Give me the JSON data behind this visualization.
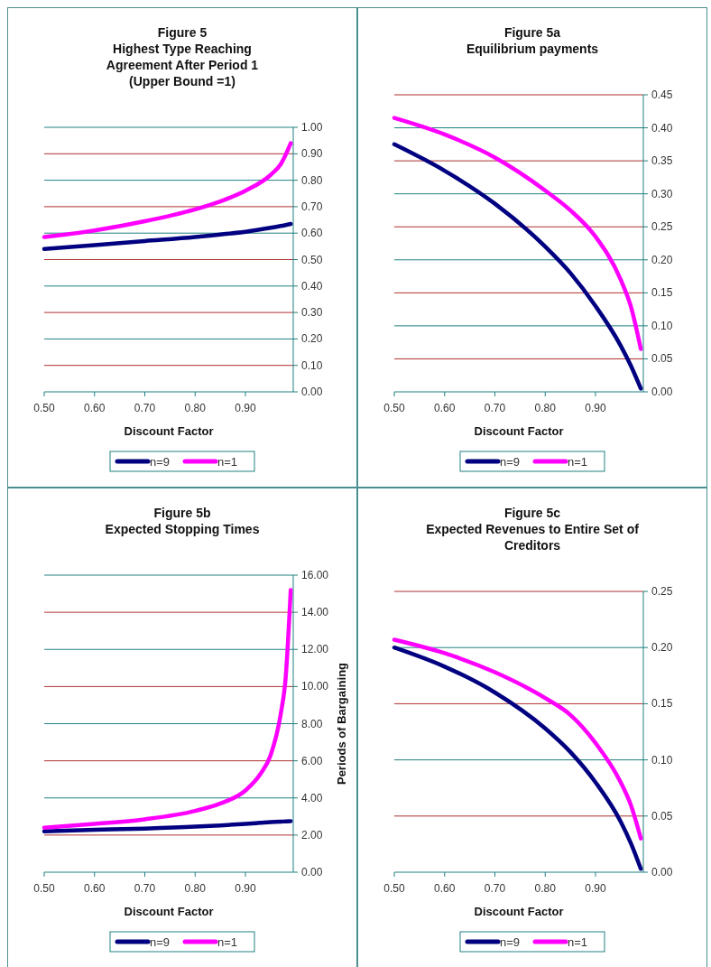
{
  "chart_data": [
    {
      "type": "line",
      "title": "Figure 5\nHighest Type Reaching\nAgreement After Period 1\n(Upper Bound =1)",
      "xlabel": "Discount Factor",
      "x": [
        0.5,
        0.6,
        0.7,
        0.8,
        0.85,
        0.9,
        0.95,
        0.97,
        0.99
      ],
      "xlim": [
        0.5,
        0.995
      ],
      "xticks": [
        {
          "value": 0.5,
          "label": "0.50"
        },
        {
          "value": 0.6,
          "label": "0.60"
        },
        {
          "value": 0.7,
          "label": "0.70"
        },
        {
          "value": 0.8,
          "label": "0.80"
        },
        {
          "value": 0.9,
          "label": "0.90"
        }
      ],
      "ylim": [
        0,
        1
      ],
      "yticks": [
        {
          "value": 0,
          "label": "0.00"
        },
        {
          "value": 0.1,
          "label": "0.10"
        },
        {
          "value": 0.2,
          "label": "0.20"
        },
        {
          "value": 0.3,
          "label": "0.30"
        },
        {
          "value": 0.4,
          "label": "0.40"
        },
        {
          "value": 0.5,
          "label": "0.50"
        },
        {
          "value": 0.6,
          "label": "0.60"
        },
        {
          "value": 0.7,
          "label": "0.70"
        },
        {
          "value": 0.8,
          "label": "0.80"
        },
        {
          "value": 0.9,
          "label": "0.90"
        },
        {
          "value": 1,
          "label": "1.00"
        }
      ],
      "grid": "y",
      "legend": "bottom",
      "series": [
        {
          "name": "n=9",
          "color": "#000080",
          "values": [
            0.54,
            0.555,
            0.57,
            0.585,
            0.595,
            0.605,
            0.62,
            0.627,
            0.635
          ]
        },
        {
          "name": "n=1",
          "color": "#ff00ff",
          "values": [
            0.585,
            0.61,
            0.645,
            0.69,
            0.72,
            0.76,
            0.82,
            0.86,
            0.94
          ]
        }
      ]
    },
    {
      "type": "line",
      "title": "Figure 5a\nEquilibrium payments",
      "xlabel": "Discount Factor",
      "x": [
        0.5,
        0.6,
        0.7,
        0.8,
        0.85,
        0.9,
        0.95,
        0.97,
        0.99
      ],
      "xlim": [
        0.5,
        0.995
      ],
      "xticks": [
        {
          "value": 0.5,
          "label": "0.50"
        },
        {
          "value": 0.6,
          "label": "0.60"
        },
        {
          "value": 0.7,
          "label": "0.70"
        },
        {
          "value": 0.8,
          "label": "0.80"
        },
        {
          "value": 0.9,
          "label": "0.90"
        }
      ],
      "ylim": [
        0,
        0.45
      ],
      "yticks": [
        {
          "value": 0,
          "label": "0.00"
        },
        0.05,
        {
          "value": 0.1,
          "label": "0.10"
        },
        0.15,
        {
          "value": 0.2,
          "label": "0.20"
        },
        0.25,
        {
          "value": 0.3,
          "label": "0.30"
        },
        0.35,
        {
          "value": 0.4,
          "label": "0.40"
        },
        0.45
      ],
      "grid": "y",
      "legend": "bottom",
      "series": [
        {
          "name": "n=9",
          "color": "#000080",
          "values": [
            0.375,
            0.335,
            0.285,
            0.22,
            0.18,
            0.13,
            0.07,
            0.04,
            0.005
          ]
        },
        {
          "name": "n=1",
          "color": "#ff00ff",
          "values": [
            0.415,
            0.39,
            0.355,
            0.305,
            0.275,
            0.235,
            0.17,
            0.13,
            0.065
          ]
        }
      ]
    },
    {
      "type": "line",
      "title": "Figure 5b\nExpected Stopping Times",
      "xlabel": "Discount Factor",
      "ylabel": "Periods of Bargaining",
      "x": [
        0.5,
        0.6,
        0.7,
        0.8,
        0.85,
        0.9,
        0.93,
        0.95,
        0.97,
        0.98,
        0.99
      ],
      "xlim": [
        0.5,
        0.995
      ],
      "xticks": [
        {
          "value": 0.5,
          "label": "0.50"
        },
        {
          "value": 0.6,
          "label": "0.60"
        },
        {
          "value": 0.7,
          "label": "0.70"
        },
        {
          "value": 0.8,
          "label": "0.80"
        },
        {
          "value": 0.9,
          "label": "0.90"
        }
      ],
      "ylim": [
        0,
        16
      ],
      "yticks": [
        {
          "value": 0,
          "label": "0.00"
        },
        {
          "value": 2,
          "label": "2.00"
        },
        {
          "value": 4,
          "label": "4.00"
        },
        {
          "value": 6,
          "label": "6.00"
        },
        {
          "value": 8,
          "label": "8.00"
        },
        {
          "value": 10,
          "label": "10.00"
        },
        {
          "value": 12,
          "label": "12.00"
        },
        {
          "value": 14,
          "label": "14.00"
        },
        {
          "value": 16,
          "label": "16.00"
        }
      ],
      "grid": "y",
      "legend": "bottom",
      "series": [
        {
          "name": "n=9",
          "color": "#000080",
          "values": [
            2.2,
            2.28,
            2.35,
            2.45,
            2.52,
            2.6,
            2.66,
            2.7,
            2.72,
            2.74,
            2.75
          ]
        },
        {
          "name": "n=1",
          "color": "#ff00ff",
          "values": [
            2.4,
            2.6,
            2.85,
            3.3,
            3.7,
            4.4,
            5.3,
            6.3,
            8.5,
            10.5,
            15.2
          ]
        }
      ]
    },
    {
      "type": "line",
      "title": "Figure 5c\nExpected Revenues to Entire Set of\nCreditors",
      "xlabel": "Discount Factor",
      "x": [
        0.5,
        0.6,
        0.7,
        0.8,
        0.85,
        0.9,
        0.95,
        0.97,
        0.99
      ],
      "xlim": [
        0.5,
        0.995
      ],
      "xticks": [
        {
          "value": 0.5,
          "label": "0.50"
        },
        {
          "value": 0.6,
          "label": "0.60"
        },
        {
          "value": 0.7,
          "label": "0.70"
        },
        {
          "value": 0.8,
          "label": "0.80"
        },
        {
          "value": 0.9,
          "label": "0.90"
        }
      ],
      "ylim": [
        0,
        0.25
      ],
      "yticks": [
        {
          "value": 0,
          "label": "0.00"
        },
        0.05,
        {
          "value": 0.1,
          "label": "0.10"
        },
        0.15,
        {
          "value": 0.2,
          "label": "0.20"
        },
        0.25
      ],
      "grid": "y",
      "legend": "bottom",
      "series": [
        {
          "name": "n=9",
          "color": "#000080",
          "values": [
            0.2,
            0.183,
            0.16,
            0.128,
            0.107,
            0.08,
            0.045,
            0.026,
            0.003
          ]
        },
        {
          "name": "n=1",
          "color": "#ff00ff",
          "values": [
            0.207,
            0.195,
            0.178,
            0.155,
            0.14,
            0.115,
            0.08,
            0.06,
            0.03
          ]
        }
      ]
    }
  ]
}
